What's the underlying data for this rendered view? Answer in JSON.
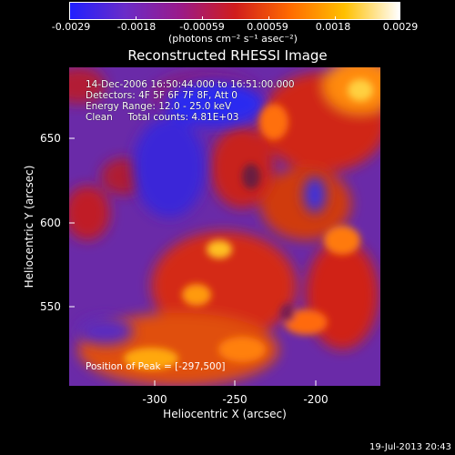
{
  "colorbar": {
    "ticks": [
      "-0.0029",
      "-0.0018",
      "-0.00059",
      "0.00059",
      "0.0018",
      "0.0029"
    ],
    "unit_label": "(photons cm⁻² s⁻¹ asec⁻²)",
    "colors": [
      "#2020ff",
      "#6a2cc8",
      "#9a1a8a",
      "#d01c1c",
      "#ff6a00",
      "#ffc000",
      "#ffffff"
    ]
  },
  "plot": {
    "title": "Reconstructed RHESSI Image",
    "info": {
      "time": "14-Dec-2006 16:50:44.000 to 16:51:00.000",
      "detectors": "Detectors: 4F 5F 6F 7F 8F, Att 0",
      "energy": "Energy Range: 12.0 - 25.0 keV",
      "method": "Clean     Total counts: 4.81E+03"
    },
    "peak": "Position of Peak = [-297,500]",
    "y_ticks": [
      "650",
      "600",
      "550"
    ],
    "x_ticks": [
      "-300",
      "-250",
      "-200"
    ],
    "xlabel": "Heliocentric X (arcsec)",
    "ylabel": "Heliocentric Y (arcsec)",
    "background_color": "#6a2aa8"
  },
  "timestamp": "19-Jul-2013 20:43"
}
